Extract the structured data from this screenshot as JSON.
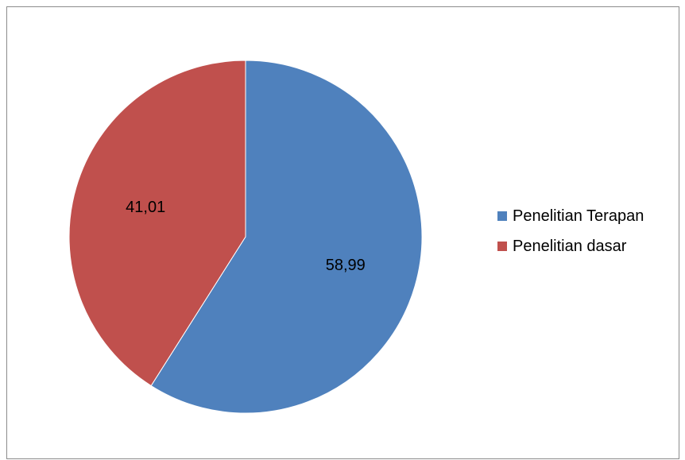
{
  "chart_data": {
    "type": "pie",
    "categories": [
      "Penelitian Terapan",
      "Penelitian dasar"
    ],
    "values": [
      58.99,
      41.01
    ],
    "data_labels": [
      "58,99",
      "41,01"
    ],
    "colors": [
      "#4f81bd",
      "#c0504d"
    ],
    "legend": {
      "placement": "right",
      "entries": [
        "Penelitian Terapan",
        "Penelitian dasar"
      ]
    },
    "start_angle": "12 o'clock",
    "direction": "clockwise"
  }
}
